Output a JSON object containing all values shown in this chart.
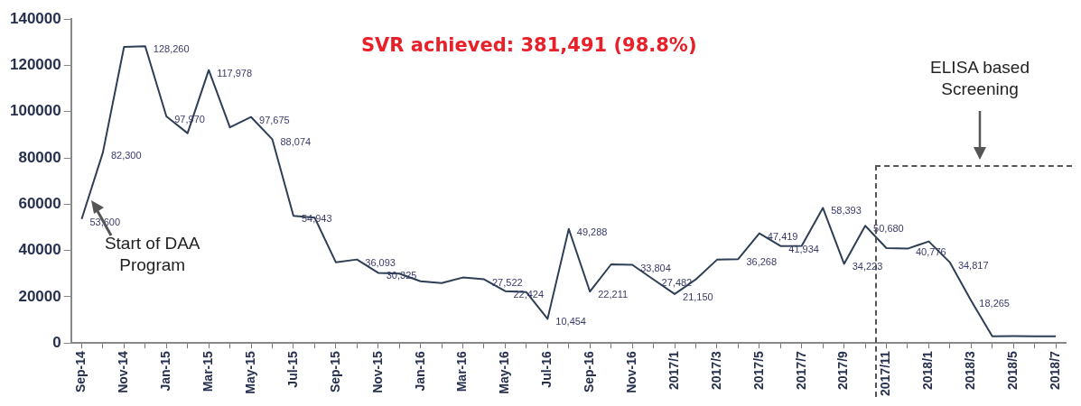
{
  "chart_data": {
    "type": "line",
    "title": "SVR achieved: 381,491 (98.8%)",
    "categories": [
      "Sep-14",
      null,
      "Nov-14",
      null,
      "Jan-15",
      null,
      "Mar-15",
      null,
      "May-15",
      null,
      "Jul-15",
      null,
      "Sep-15",
      null,
      "Nov-15",
      null,
      "Jan-16",
      null,
      "Mar-16",
      null,
      "May-16",
      null,
      "Jul-16",
      null,
      "Sep-16",
      null,
      "Nov-16",
      null,
      "2017/1",
      null,
      "2017/3",
      null,
      "2017/5",
      null,
      "2017/7",
      null,
      "2017/9",
      null,
      "2017/11",
      null,
      "2018/1",
      null,
      "2018/3",
      null,
      "2018/5",
      null,
      "2018/7"
    ],
    "series": [
      {
        "color": "#2e3f55",
        "values": [
          53600,
          82300,
          128000,
          128260,
          97970,
          90700,
          117978,
          93200,
          97675,
          88074,
          54943,
          54200,
          34900,
          36093,
          30325,
          30000,
          26700,
          25900,
          28300,
          27522,
          22424,
          22000,
          10454,
          49288,
          22211,
          34000,
          33804,
          27482,
          21150,
          27500,
          36000,
          36268,
          47419,
          41934,
          42000,
          58393,
          34223,
          50680,
          41000,
          40776,
          43900,
          34817,
          18265,
          2900,
          3000,
          2900,
          2900
        ],
        "value_labels": [
          "53,600",
          "82,300",
          null,
          "128,260",
          "97,970",
          null,
          "117,978",
          null,
          "97,675",
          "88,074",
          "54,943",
          null,
          null,
          "36,093",
          "30,325",
          null,
          null,
          null,
          null,
          "27,522",
          "22,424",
          null,
          "10,454",
          "49,288",
          "22,211",
          null,
          "33,804",
          "27,482",
          "21,150",
          null,
          null,
          "36,268",
          "47,419",
          "41,934",
          null,
          "58,393",
          "34,223",
          "50,680",
          null,
          "40,776",
          null,
          "34,817",
          "18,265",
          null,
          null,
          null,
          null
        ]
      }
    ],
    "ylim": [
      0,
      140000
    ],
    "yticks": [
      0,
      20000,
      40000,
      60000,
      80000,
      100000,
      120000,
      140000
    ],
    "grid": false,
    "legend": false,
    "marker": "none",
    "line_style": "solid",
    "annotations": [
      "Start of DAA Program",
      "ELISA based Screening"
    ]
  }
}
